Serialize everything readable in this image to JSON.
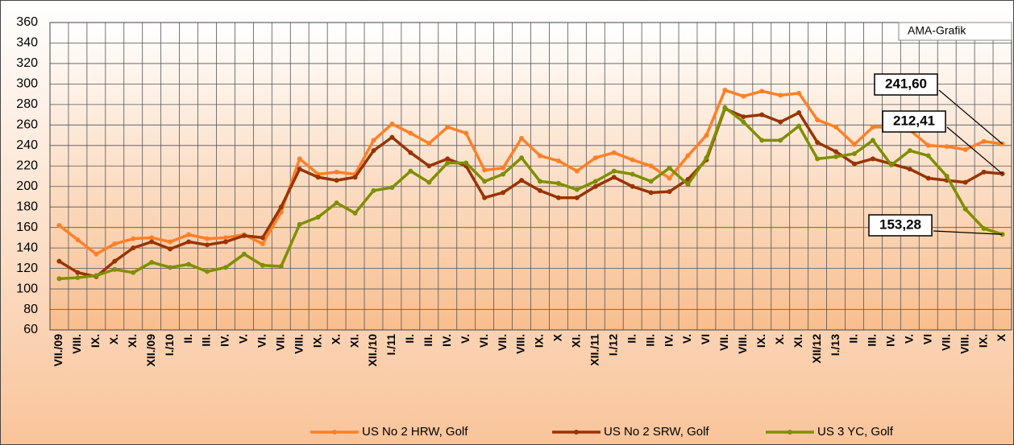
{
  "chart_data": {
    "type": "line",
    "annotation": "AMA-Grafik",
    "categories": [
      "VII./09",
      "VIII.",
      "IX.",
      "X.",
      "XI.",
      "XII./09",
      "I./10",
      "II.",
      "III.",
      "IV.",
      "V.",
      "VI.",
      "VII.",
      "VIII.",
      "IX.",
      "X.",
      "XI.",
      "XII./10",
      "I./11",
      "II.",
      "III.",
      "IV.",
      "V.",
      "VI.",
      "VII.",
      "VIII.",
      "IX.",
      "X",
      "XI.",
      "XII./11",
      "I./12",
      "II.",
      "III.",
      "IV.",
      "V.",
      "VI",
      "VII.",
      "VIII.",
      "IX.",
      "X.",
      "XI.",
      "XII/12",
      "I./13",
      "II.",
      "III.",
      "IV.",
      "V.",
      "VI",
      "VII.",
      "VIII.",
      "IX.",
      "X"
    ],
    "series": [
      {
        "name": "US No 2 HRW, Golf",
        "color": "#ff7f27",
        "values": [
          162,
          148,
          134,
          144,
          149,
          150,
          146,
          153,
          149,
          150,
          153,
          144,
          175,
          227,
          212,
          214,
          212,
          245,
          261,
          252,
          242,
          258,
          252,
          216,
          218,
          247,
          230,
          225,
          215,
          228,
          233,
          226,
          220,
          208,
          230,
          250,
          294,
          288,
          293,
          289,
          291,
          265,
          258,
          241,
          258,
          258,
          255,
          240,
          239,
          236,
          244,
          241.6
        ],
        "value_labels": [
          null,
          null,
          null,
          null,
          null,
          null,
          null,
          null,
          null,
          null,
          null,
          null,
          null,
          null,
          null,
          null,
          null,
          null,
          null,
          null,
          null,
          null,
          null,
          null,
          null,
          null,
          null,
          null,
          null,
          null,
          null,
          null,
          null,
          null,
          null,
          null,
          null,
          null,
          null,
          null,
          null,
          null,
          null,
          null,
          null,
          null,
          null,
          null,
          null,
          null,
          null,
          "241,60"
        ]
      },
      {
        "name": "US No 2 SRW, Golf",
        "color": "#993300",
        "values": [
          127,
          116,
          112,
          127,
          140,
          146,
          139,
          146,
          143,
          146,
          152,
          150,
          180,
          217,
          209,
          206,
          209,
          235,
          248,
          233,
          220,
          227,
          220,
          189,
          194,
          206,
          196,
          189,
          189,
          200,
          209,
          200,
          194,
          195,
          207,
          226,
          276,
          268,
          270,
          263,
          272,
          243,
          234,
          222,
          227,
          222,
          217,
          208,
          206,
          204,
          214,
          212.41
        ],
        "value_labels": [
          null,
          null,
          null,
          null,
          null,
          null,
          null,
          null,
          null,
          null,
          null,
          null,
          null,
          null,
          null,
          null,
          null,
          null,
          null,
          null,
          null,
          null,
          null,
          null,
          null,
          null,
          null,
          null,
          null,
          null,
          null,
          null,
          null,
          null,
          null,
          null,
          null,
          null,
          null,
          null,
          null,
          null,
          null,
          null,
          null,
          null,
          null,
          null,
          null,
          null,
          null,
          "212,41"
        ]
      },
      {
        "name": "US 3 YC, Golf",
        "color": "#7f8f00",
        "values": [
          110,
          111,
          113,
          119,
          116,
          126,
          121,
          124,
          117,
          121,
          134,
          123,
          122,
          163,
          170,
          184,
          174,
          196,
          199,
          215,
          204,
          223,
          223,
          205,
          212,
          228,
          205,
          203,
          197,
          205,
          215,
          212,
          205,
          218,
          202,
          228,
          277,
          263,
          245,
          245,
          259,
          227,
          229,
          232,
          245,
          221,
          235,
          230,
          210,
          178,
          159,
          153.28
        ],
        "value_labels": [
          null,
          null,
          null,
          null,
          null,
          null,
          null,
          null,
          null,
          null,
          null,
          null,
          null,
          null,
          null,
          null,
          null,
          null,
          null,
          null,
          null,
          null,
          null,
          null,
          null,
          null,
          null,
          null,
          null,
          null,
          null,
          null,
          null,
          null,
          null,
          null,
          null,
          null,
          null,
          null,
          null,
          null,
          null,
          null,
          null,
          null,
          null,
          null,
          null,
          null,
          null,
          "153,28"
        ]
      }
    ],
    "ylim": [
      60,
      360
    ],
    "yticks": [
      60,
      80,
      100,
      120,
      140,
      160,
      180,
      200,
      220,
      240,
      260,
      280,
      300,
      320,
      340,
      360
    ],
    "grid": true,
    "legend": "bottom"
  }
}
